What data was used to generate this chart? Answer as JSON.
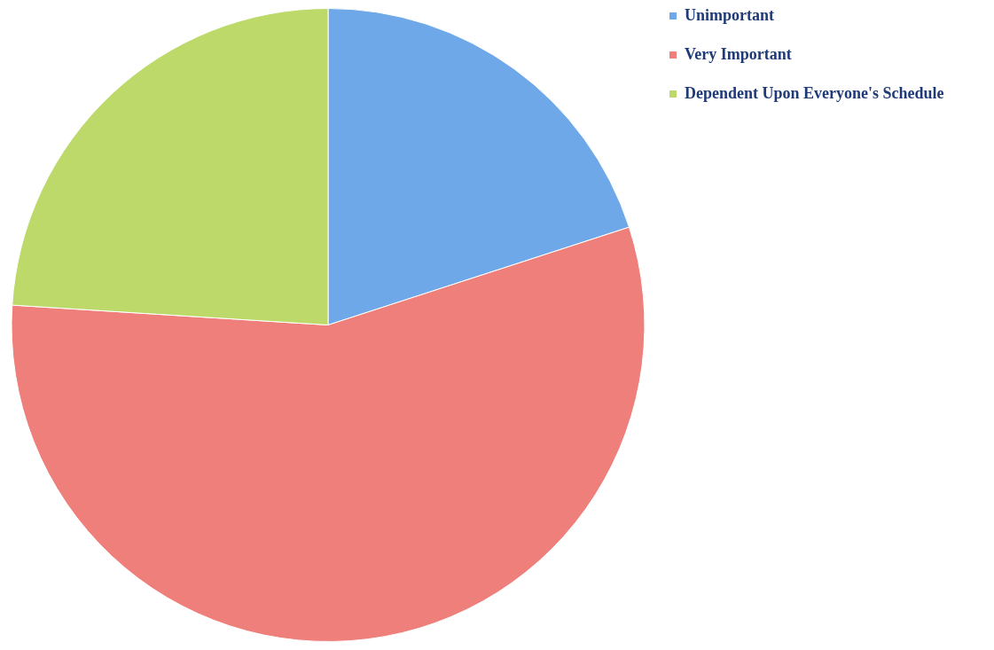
{
  "chart_data": {
    "type": "pie",
    "categories": [
      "Unimportant",
      "Very Important",
      "Dependent Upon Everyone's Schedule"
    ],
    "values": [
      20,
      56,
      24
    ],
    "colors": [
      "#6fa8e8",
      "#ee7f7a",
      "#bcd96a"
    ],
    "legend": "right"
  }
}
